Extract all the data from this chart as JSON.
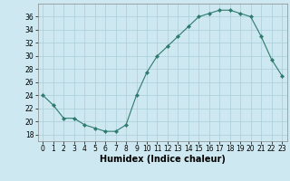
{
  "x": [
    0,
    1,
    2,
    3,
    4,
    5,
    6,
    7,
    8,
    9,
    10,
    11,
    12,
    13,
    14,
    15,
    16,
    17,
    18,
    19,
    20,
    21,
    22,
    23
  ],
  "y": [
    24,
    22.5,
    20.5,
    20.5,
    19.5,
    19,
    18.5,
    18.5,
    19.5,
    24,
    27.5,
    30,
    31.5,
    33,
    34.5,
    36,
    36.5,
    37,
    37,
    36.5,
    36,
    33,
    29.5,
    27
  ],
  "line_color": "#2d7a6e",
  "marker": "D",
  "marker_size": 2.2,
  "bg_color": "#cde8f0",
  "grid_color": "#aacdd8",
  "xlabel": "Humidex (Indice chaleur)",
  "ylim": [
    17,
    38
  ],
  "yticks": [
    18,
    20,
    22,
    24,
    26,
    28,
    30,
    32,
    34,
    36
  ],
  "xlim": [
    -0.5,
    23.5
  ],
  "xticks": [
    0,
    1,
    2,
    3,
    4,
    5,
    6,
    7,
    8,
    9,
    10,
    11,
    12,
    13,
    14,
    15,
    16,
    17,
    18,
    19,
    20,
    21,
    22,
    23
  ],
  "tick_fontsize": 5.5,
  "label_fontsize": 7.0
}
